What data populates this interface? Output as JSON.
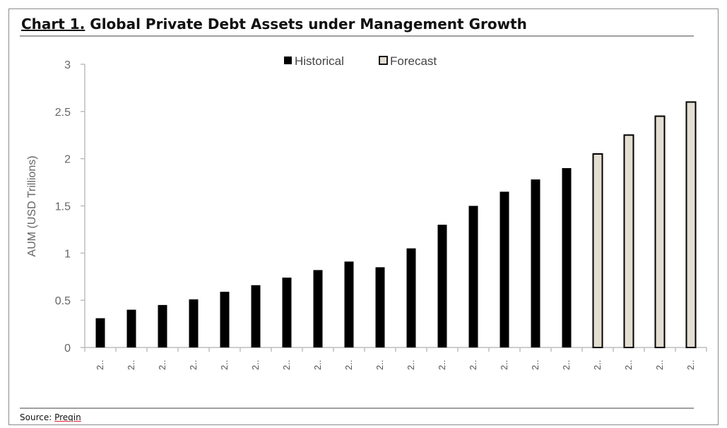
{
  "header": {
    "prefix": "Chart 1.",
    "title": "Global Private Debt Assets under Management Growth"
  },
  "footer": {
    "source_label": "Source:",
    "source_name": "Preqin"
  },
  "chart_data": {
    "type": "bar",
    "title": "Global Private Debt Assets under Management Growth",
    "xlabel": "",
    "ylabel": "AUM (USD Trillions)",
    "ylim": [
      0,
      3
    ],
    "yticks": [
      0,
      0.5,
      1,
      1.5,
      2,
      2.5,
      3
    ],
    "categories": [
      "2..",
      "2..",
      "2..",
      "2..",
      "2..",
      "2..",
      "2..",
      "2..",
      "2..",
      "2..",
      "2..",
      "2..",
      "2..",
      "2..",
      "2..",
      "2..",
      "2..",
      "2..",
      "2..",
      "2.."
    ],
    "series": [
      {
        "name": "Historical",
        "color": "#000000",
        "values": [
          0.31,
          0.4,
          0.45,
          0.51,
          0.59,
          0.66,
          0.74,
          0.82,
          0.91,
          0.85,
          1.05,
          1.3,
          1.5,
          1.65,
          1.78,
          1.9,
          null,
          null,
          null,
          null
        ]
      },
      {
        "name": "Forecast",
        "color": "#e3ddd2",
        "stroke": "#000000",
        "values": [
          null,
          null,
          null,
          null,
          null,
          null,
          null,
          null,
          null,
          null,
          null,
          null,
          null,
          null,
          null,
          null,
          2.05,
          2.25,
          2.45,
          2.6
        ]
      }
    ],
    "grid": false,
    "legend_position": "top-center"
  }
}
